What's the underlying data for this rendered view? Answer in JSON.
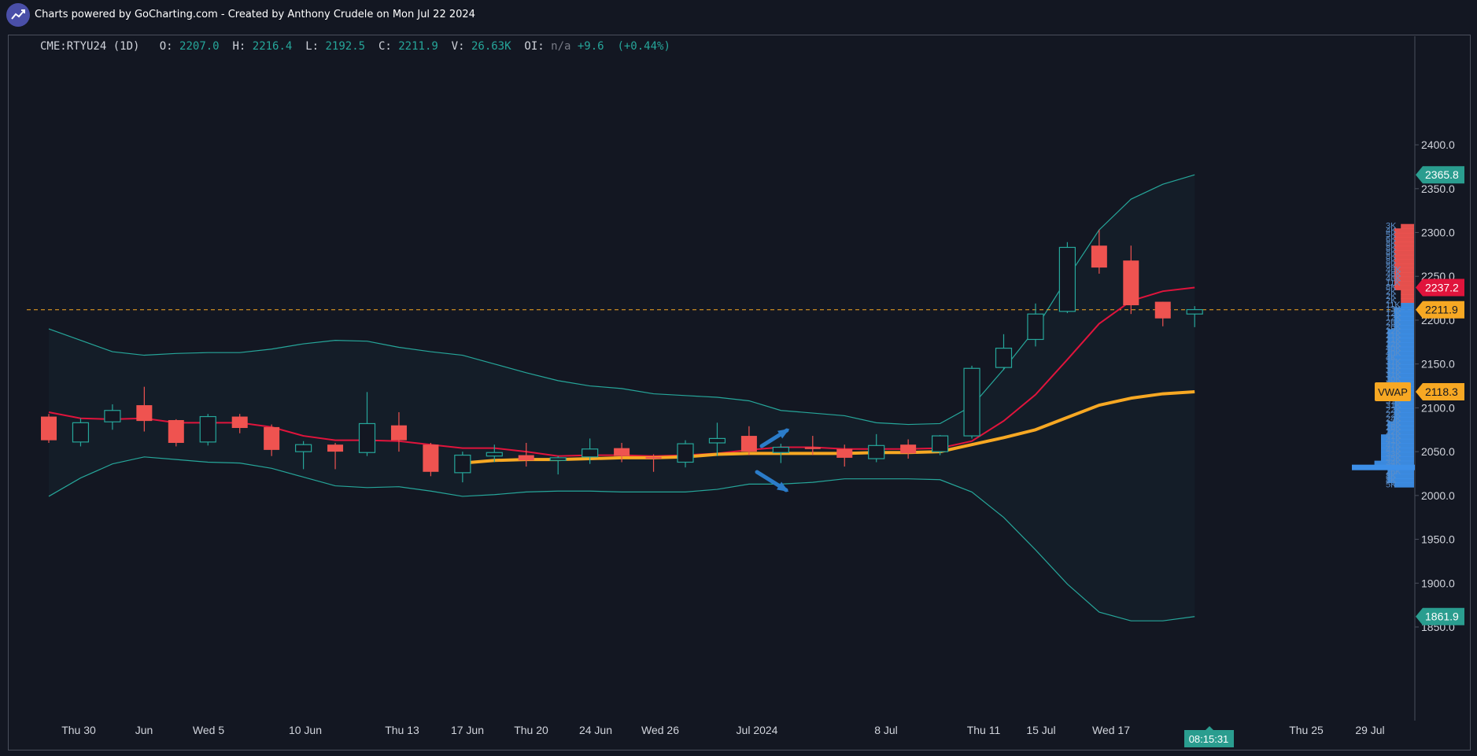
{
  "header": {
    "text": "Charts powered by GoCharting.com - Created by Anthony Crudele on Mon Jul 22 2024",
    "logo_icon": "chart-trend-icon"
  },
  "legend": {
    "symbol": "CME:RTYU24 (1D)",
    "o_label": "O:",
    "o_value": "2207.0",
    "h_label": "H:",
    "h_value": "2216.4",
    "l_label": "L:",
    "l_value": "2192.5",
    "c_label": "C:",
    "c_value": "2211.9",
    "v_label": "V:",
    "v_value": "26.63K",
    "oi_label": "OI:",
    "oi_value": "n/a",
    "change": "+9.6",
    "change_pct": "(+0.44%)"
  },
  "price_tags": {
    "upper_band": "2365.8",
    "moving_average": "2237.2",
    "last_price": "2211.9",
    "vwap_label": "VWAP",
    "vwap": "2118.3",
    "lower_band": "1861.9"
  },
  "time_tag": "08:15:31",
  "colors": {
    "background": "#131722",
    "up_candle": "#26a69a",
    "down_candle": "#ef5350",
    "bollinger": "#26a69a",
    "moving_average": "#e0143c",
    "vwap": "#f7a823",
    "last_price_line": "#f7a823",
    "volume_profile": "#3d8fe8"
  },
  "chart_data": {
    "type": "candlestick",
    "y_ticks": [
      "2400.0",
      "2350.0",
      "2300.0",
      "2250.0",
      "2200.0",
      "2150.0",
      "2100.0",
      "2050.0",
      "2000.0",
      "1950.0",
      "1900.0",
      "1850.0"
    ],
    "ylim": [
      1840,
      2410
    ],
    "x_ticks": [
      "Thu 30",
      "Jun",
      "Wed 5",
      "10 Jun",
      "Thu 13",
      "17 Jun",
      "Thu 20",
      "24 Jun",
      "Wed 26",
      "Jul 2024",
      "8 Jul",
      "Thu 11",
      "15 Jul",
      "Wed 17",
      "Thu 25",
      "29 Jul"
    ],
    "candles": [
      {
        "o": 2090,
        "h": 2093,
        "l": 2060,
        "c": 2063
      },
      {
        "o": 2061,
        "h": 2088,
        "l": 2056,
        "c": 2083
      },
      {
        "o": 2084,
        "h": 2104,
        "l": 2075,
        "c": 2097
      },
      {
        "o": 2103,
        "h": 2124,
        "l": 2073,
        "c": 2085
      },
      {
        "o": 2086,
        "h": 2087,
        "l": 2056,
        "c": 2060
      },
      {
        "o": 2061,
        "h": 2093,
        "l": 2057,
        "c": 2090
      },
      {
        "o": 2090,
        "h": 2093,
        "l": 2071,
        "c": 2077
      },
      {
        "o": 2078,
        "h": 2081,
        "l": 2045,
        "c": 2052
      },
      {
        "o": 2050,
        "h": 2062,
        "l": 2030,
        "c": 2058
      },
      {
        "o": 2058,
        "h": 2060,
        "l": 2030,
        "c": 2050
      },
      {
        "o": 2049,
        "h": 2118,
        "l": 2045,
        "c": 2082
      },
      {
        "o": 2080,
        "h": 2095,
        "l": 2050,
        "c": 2063
      },
      {
        "o": 2058,
        "h": 2060,
        "l": 2022,
        "c": 2027
      },
      {
        "o": 2026,
        "h": 2050,
        "l": 2015,
        "c": 2046
      },
      {
        "o": 2045,
        "h": 2058,
        "l": 2038,
        "c": 2049
      },
      {
        "o": 2046,
        "h": 2060,
        "l": 2033,
        "c": 2040
      },
      {
        "o": 2040,
        "h": 2045,
        "l": 2024,
        "c": 2043
      },
      {
        "o": 2044,
        "h": 2065,
        "l": 2036,
        "c": 2053
      },
      {
        "o": 2054,
        "h": 2060,
        "l": 2038,
        "c": 2045
      },
      {
        "o": 2044,
        "h": 2047,
        "l": 2027,
        "c": 2042
      },
      {
        "o": 2038,
        "h": 2063,
        "l": 2032,
        "c": 2059
      },
      {
        "o": 2060,
        "h": 2083,
        "l": 2045,
        "c": 2065
      },
      {
        "o": 2068,
        "h": 2079,
        "l": 2046,
        "c": 2050
      },
      {
        "o": 2049,
        "h": 2059,
        "l": 2037,
        "c": 2055
      },
      {
        "o": 2055,
        "h": 2068,
        "l": 2046,
        "c": 2053
      },
      {
        "o": 2053,
        "h": 2058,
        "l": 2033,
        "c": 2043
      },
      {
        "o": 2042,
        "h": 2070,
        "l": 2038,
        "c": 2057
      },
      {
        "o": 2058,
        "h": 2064,
        "l": 2042,
        "c": 2048
      },
      {
        "o": 2050,
        "h": 2069,
        "l": 2046,
        "c": 2068
      },
      {
        "o": 2068,
        "h": 2148,
        "l": 2065,
        "c": 2145
      },
      {
        "o": 2146,
        "h": 2184,
        "l": 2143,
        "c": 2168
      },
      {
        "o": 2178,
        "h": 2219,
        "l": 2170,
        "c": 2207
      },
      {
        "o": 2210,
        "h": 2289,
        "l": 2208,
        "c": 2283
      },
      {
        "o": 2285,
        "h": 2303,
        "l": 2253,
        "c": 2260
      },
      {
        "o": 2268,
        "h": 2285,
        "l": 2207,
        "c": 2217
      },
      {
        "o": 2221,
        "h": 2221,
        "l": 2193,
        "c": 2202
      },
      {
        "o": 2207,
        "h": 2216,
        "l": 2192,
        "c": 2212
      }
    ],
    "moving_average": [
      2095,
      2088,
      2087,
      2088,
      2083,
      2083,
      2083,
      2078,
      2068,
      2063,
      2063,
      2062,
      2058,
      2054,
      2054,
      2050,
      2045,
      2046,
      2046,
      2045,
      2046,
      2048,
      2052,
      2055,
      2055,
      2053,
      2053,
      2053,
      2054,
      2062,
      2085,
      2115,
      2155,
      2196,
      2222,
      2233,
      2237.2
    ],
    "bollinger_upper": [
      2190,
      2177,
      2164,
      2160,
      2162,
      2163,
      2163,
      2167,
      2173,
      2177,
      2176,
      2169,
      2164,
      2160,
      2150,
      2140,
      2131,
      2125,
      2122,
      2116,
      2114,
      2112,
      2108,
      2097,
      2094,
      2091,
      2083,
      2081,
      2082,
      2102,
      2144,
      2190,
      2248,
      2303,
      2338,
      2355,
      2365.8
    ],
    "bollinger_lower": [
      1999,
      2020,
      2036,
      2044,
      2041,
      2038,
      2037,
      2031,
      2021,
      2011,
      2009,
      2010,
      2005,
      1999,
      2001,
      2004,
      2005,
      2005,
      2004,
      2004,
      2004,
      2007,
      2013,
      2013,
      2015,
      2019,
      2019,
      2019,
      2018,
      2004,
      1975,
      1938,
      1899,
      1867,
      1857,
      1857,
      1861.9
    ],
    "vwap": [
      null,
      null,
      null,
      null,
      null,
      null,
      null,
      null,
      null,
      null,
      null,
      null,
      null,
      2037,
      2040,
      2041,
      2041,
      2042,
      2043,
      2043,
      2044,
      2047,
      2048,
      2048,
      2048,
      2048,
      2049,
      2049,
      2050,
      2058,
      2066,
      2075,
      2089,
      2103,
      2111,
      2116,
      2118.3
    ],
    "last_price": 2211.9,
    "vwap_value": 2118.3,
    "volume_profile": {
      "price_bins": [
        2307,
        2302,
        2297,
        2292,
        2287,
        2282,
        2277,
        2272,
        2267,
        2262,
        2257,
        2252,
        2247,
        2242,
        2237,
        2232,
        2227,
        2222,
        2217,
        2212,
        2207,
        2202,
        2197,
        2192,
        2187,
        2182,
        2177,
        2172,
        2167,
        2162,
        2157,
        2152,
        2147,
        2142,
        2137,
        2132,
        2127,
        2122,
        2117,
        2112,
        2107,
        2102,
        2097,
        2092,
        2087,
        2082,
        2077,
        2072,
        2067,
        2062,
        2057,
        2052,
        2047,
        2042,
        2037,
        2032,
        2027,
        2022,
        2017,
        2012
      ],
      "volumes": [
        2,
        3,
        3,
        3,
        3,
        3,
        3,
        3,
        3,
        3,
        3,
        3,
        3,
        3,
        3,
        2,
        2,
        2,
        2,
        3,
        3,
        3,
        3,
        3,
        4,
        4,
        4,
        4,
        4,
        4,
        4,
        4,
        4,
        4,
        4,
        4,
        4,
        3,
        3,
        3,
        3,
        3,
        3,
        3,
        3,
        4,
        4,
        4,
        5,
        5,
        5,
        5,
        5,
        5,
        6,
        8,
        4,
        4,
        4,
        3
      ],
      "labels": [
        "3K",
        "4K",
        "5K",
        "6K",
        "8K",
        "8K",
        "8K",
        "8K",
        "8K",
        "8K",
        "46K",
        "46K",
        "46K",
        "11K",
        "8K",
        "2K",
        "2K",
        "2K",
        "11K",
        "13K",
        "12K",
        "12K",
        "26K",
        "26K",
        "22K",
        "21K",
        "21K",
        "22K",
        "40K",
        "40K",
        "4K",
        "31K",
        "31K",
        "31K",
        "31K",
        "30K",
        "30K",
        "4K",
        "4K",
        "4K",
        "31K",
        "31K",
        "22K",
        "22K",
        "24K",
        "24K",
        "26K",
        "22K",
        "41K",
        "41K",
        "47K",
        "41K",
        "33K",
        "35K",
        "34K",
        "26K",
        "26K",
        "8K",
        "8K",
        "5K"
      ]
    }
  }
}
